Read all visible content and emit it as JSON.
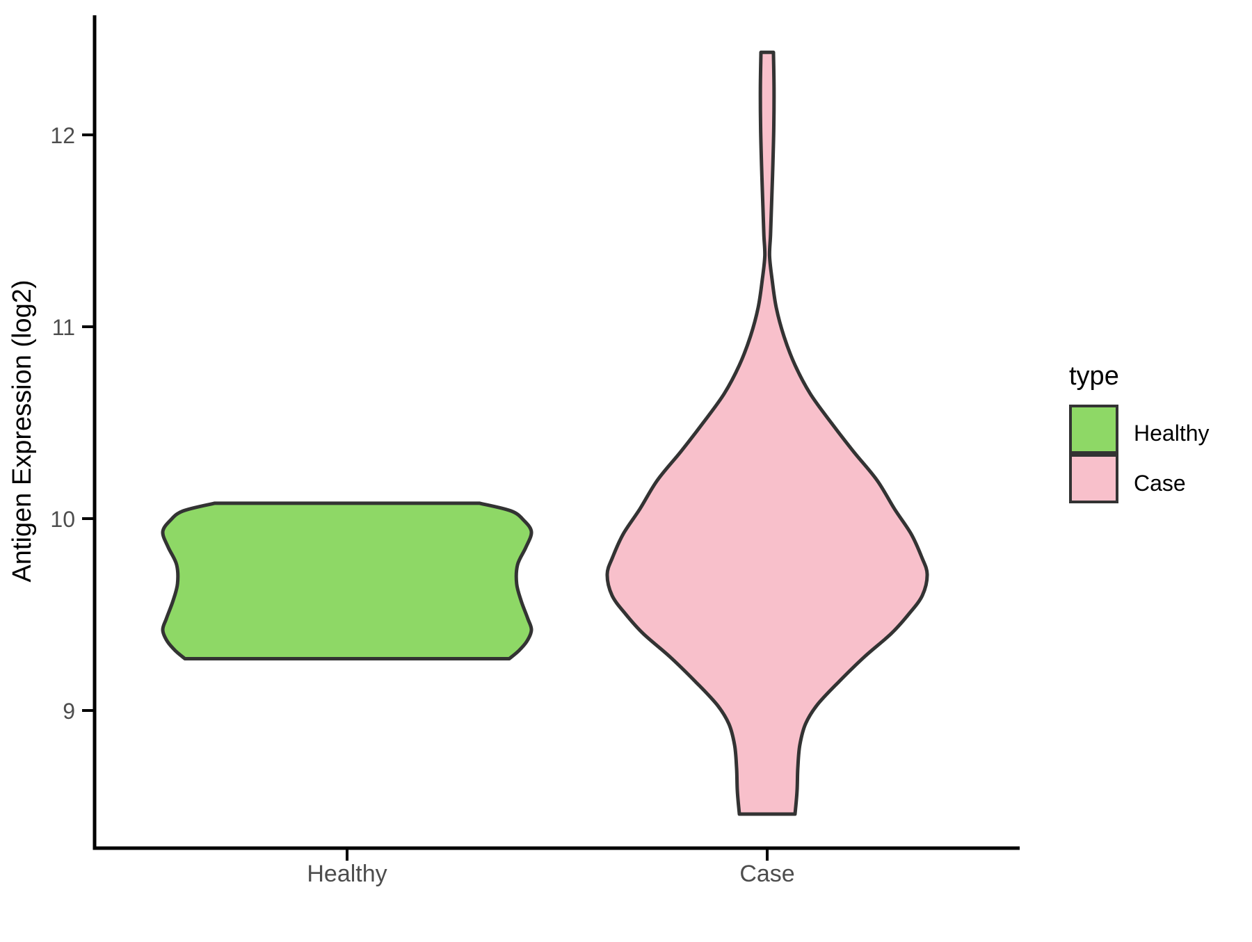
{
  "chart_data": {
    "type": "violin",
    "title": "",
    "xlabel": "",
    "ylabel": "Antigen Expression (log2)",
    "categories": [
      "Healthy",
      "Case"
    ],
    "yticks": [
      9,
      10,
      11,
      12
    ],
    "ylim": [
      8.3,
      12.6
    ],
    "grid": false,
    "legend": {
      "title": "type",
      "position": "right",
      "entries": [
        "Healthy",
        "Case"
      ]
    },
    "colors": {
      "healthy_fill": "#8ed866",
      "case_fill": "#f8c0cb",
      "outline": "#333333",
      "axis": "#000000",
      "tick_text": "#4d4d4d"
    },
    "series": [
      {
        "name": "Healthy",
        "fill": "#8ed866",
        "value_range": [
          9.27,
          10.08
        ],
        "profile": [
          [
            10.08,
            0.72
          ],
          [
            10.04,
            0.89
          ],
          [
            9.99,
            0.96
          ],
          [
            9.93,
            1.0
          ],
          [
            9.85,
            0.97
          ],
          [
            9.76,
            0.925
          ],
          [
            9.66,
            0.92
          ],
          [
            9.57,
            0.945
          ],
          [
            9.48,
            0.98
          ],
          [
            9.42,
            1.0
          ],
          [
            9.36,
            0.975
          ],
          [
            9.31,
            0.93
          ],
          [
            9.27,
            0.88
          ]
        ]
      },
      {
        "name": "Case",
        "fill": "#f8c0cb",
        "value_range": [
          8.46,
          12.43
        ],
        "profile": [
          [
            12.43,
            0.034
          ],
          [
            12.25,
            0.037
          ],
          [
            12.05,
            0.036
          ],
          [
            11.85,
            0.031
          ],
          [
            11.65,
            0.024
          ],
          [
            11.48,
            0.018
          ],
          [
            11.37,
            0.013
          ],
          [
            11.25,
            0.026
          ],
          [
            11.1,
            0.049
          ],
          [
            10.95,
            0.091
          ],
          [
            10.8,
            0.151
          ],
          [
            10.65,
            0.234
          ],
          [
            10.5,
            0.347
          ],
          [
            10.35,
            0.468
          ],
          [
            10.2,
            0.596
          ],
          [
            10.05,
            0.691
          ],
          [
            9.92,
            0.781
          ],
          [
            9.8,
            0.838
          ],
          [
            9.71,
            0.868
          ],
          [
            9.6,
            0.842
          ],
          [
            9.5,
            0.766
          ],
          [
            9.4,
            0.672
          ],
          [
            9.28,
            0.528
          ],
          [
            9.15,
            0.389
          ],
          [
            9.03,
            0.272
          ],
          [
            8.93,
            0.208
          ],
          [
            8.82,
            0.177
          ],
          [
            8.7,
            0.166
          ],
          [
            8.58,
            0.162
          ],
          [
            8.46,
            0.151
          ]
        ]
      }
    ]
  }
}
